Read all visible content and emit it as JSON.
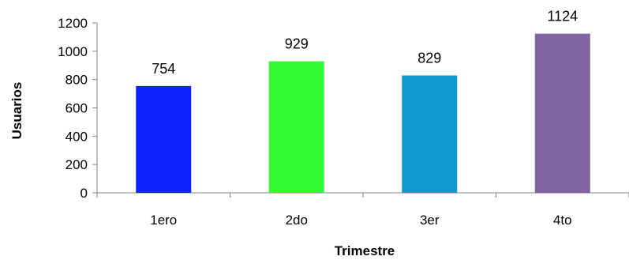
{
  "chart_data": {
    "type": "bar",
    "title": "",
    "xlabel": "Trimestre",
    "ylabel": "Usuarios",
    "categories": [
      "1ero",
      "2do",
      "3er",
      "4to"
    ],
    "values": [
      754,
      929,
      829,
      1124
    ],
    "data_labels": [
      "754",
      "929",
      "829",
      "1124"
    ],
    "bar_colors": [
      "#0b24fb",
      "#33fb33",
      "#0e99cf",
      "#8064a2"
    ],
    "ylim": [
      0,
      1200
    ],
    "yticks": [
      0,
      200,
      400,
      600,
      800,
      1000,
      1200
    ],
    "grid": false,
    "legend": "none"
  }
}
